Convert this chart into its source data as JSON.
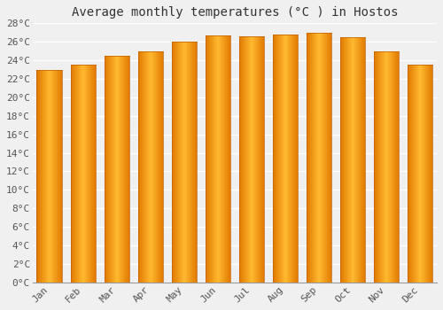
{
  "title": "Average monthly temperatures (°C ) in Hostos",
  "months": [
    "Jan",
    "Feb",
    "Mar",
    "Apr",
    "May",
    "Jun",
    "Jul",
    "Aug",
    "Sep",
    "Oct",
    "Nov",
    "Dec"
  ],
  "values": [
    23.0,
    23.5,
    24.5,
    25.0,
    26.0,
    26.7,
    26.6,
    26.8,
    27.0,
    26.5,
    25.0,
    23.5
  ],
  "bar_color_center": "#FFB930",
  "bar_color_edge": "#E07800",
  "ylim": [
    0,
    28
  ],
  "yticks": [
    0,
    2,
    4,
    6,
    8,
    10,
    12,
    14,
    16,
    18,
    20,
    22,
    24,
    26,
    28
  ],
  "background_color": "#F0F0F0",
  "grid_color": "#FFFFFF",
  "title_fontsize": 10,
  "tick_fontsize": 8,
  "font_family": "monospace",
  "tick_color": "#555555",
  "title_color": "#333333",
  "bar_width": 0.75
}
